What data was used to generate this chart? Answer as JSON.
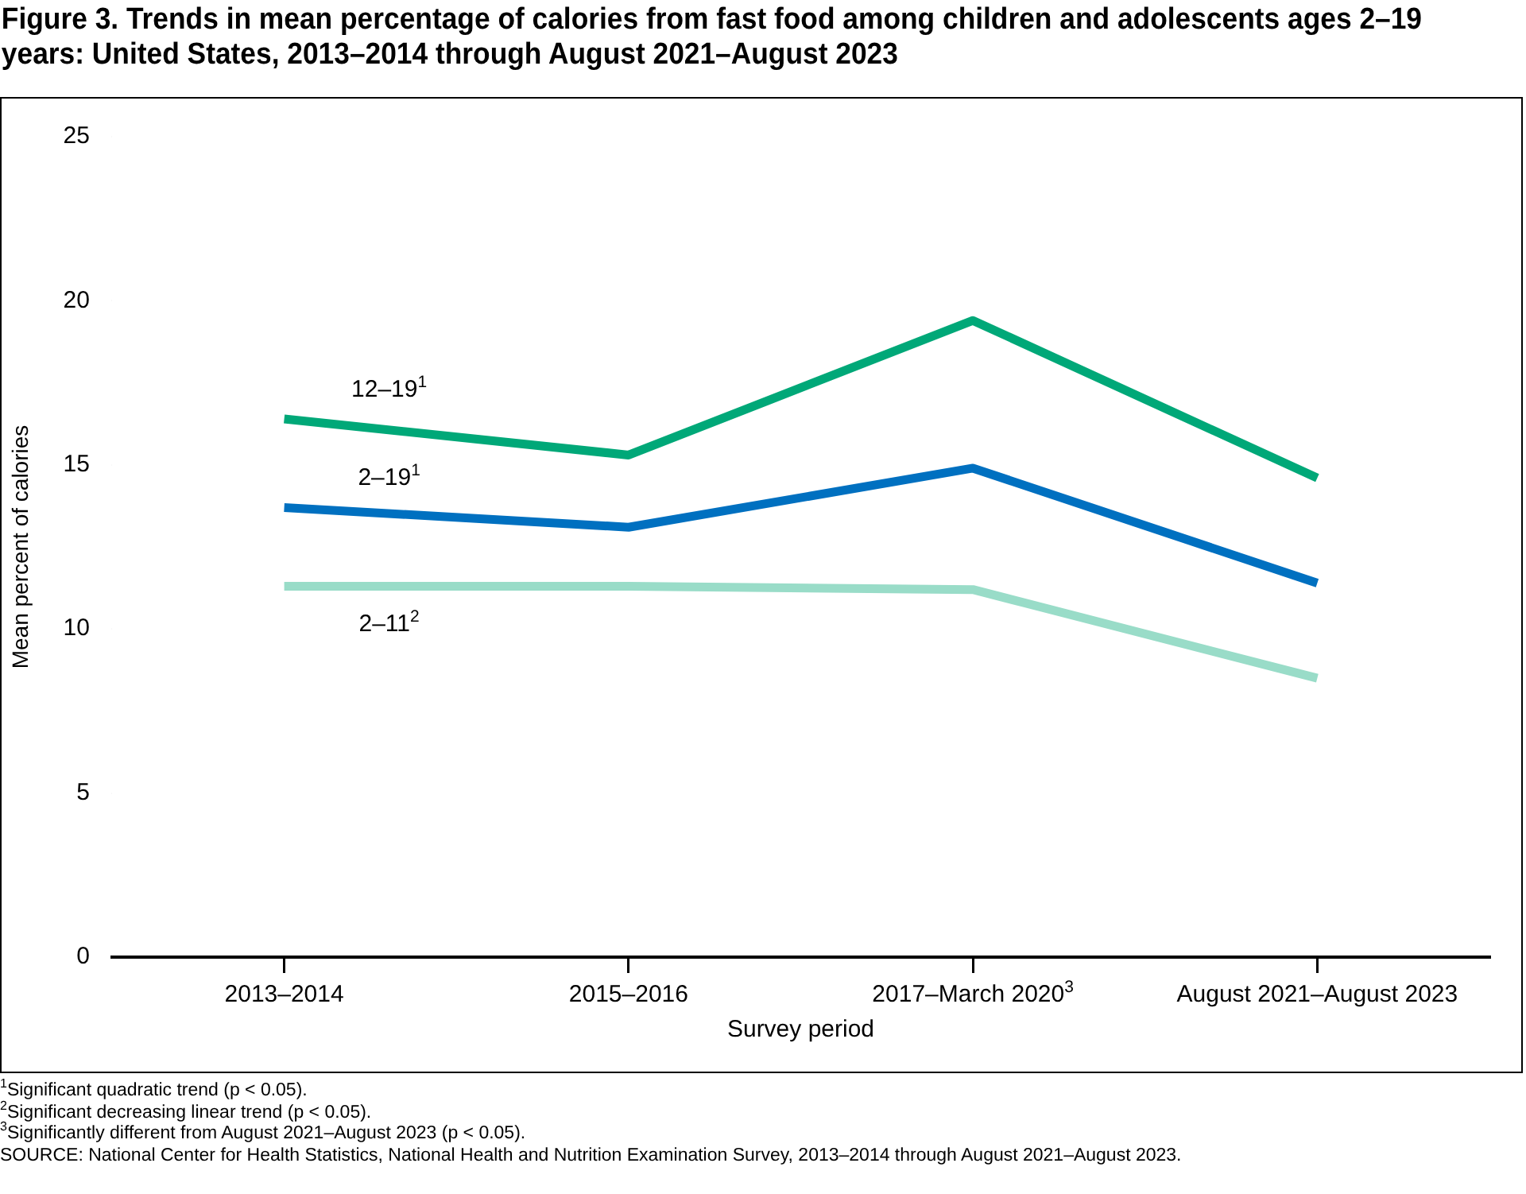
{
  "chart_data": {
    "type": "line",
    "title": "Figure 3. Trends in mean percentage of calories from fast food among children and adolescents ages 2–19 years: United States, 2013–2014 through August 2021–August 2023",
    "xlabel": "Survey period",
    "ylabel": "Mean percent of calories",
    "categories": [
      "2013–2014",
      "2015–2016",
      "2017–March 2020$^{3}$",
      "August 2021–August 2023"
    ],
    "ylim": [
      0,
      25
    ],
    "yticks": [
      0,
      5,
      10,
      15,
      20,
      25
    ],
    "series": [
      {
        "name": "12–19$^{1}$",
        "color": "#00a878",
        "values": [
          16.4,
          15.3,
          19.4,
          14.6
        ]
      },
      {
        "name": "2–19$^{1}$",
        "color": "#0070c0",
        "values": [
          13.7,
          13.1,
          14.9,
          11.4
        ]
      },
      {
        "name": "2–11$^{2}$",
        "color": "#99dcc8",
        "values": [
          11.3,
          11.3,
          11.2,
          8.5
        ]
      }
    ],
    "grid": false,
    "legend": false,
    "marker": "none",
    "line_style": "solid",
    "annotations": [
      "$^{1}$Significant quadratic trend (p < 0.05).",
      "$^{2}$Significant decreasing linear trend (p < 0.05).",
      "$^{3}$Significantly different from August 2021–August 2023 (p < 0.05).",
      "SOURCE: National Center for Health Statistics, National Health and Nutrition Examination Survey, 2013–2014 through August 2021–August 2023."
    ]
  }
}
